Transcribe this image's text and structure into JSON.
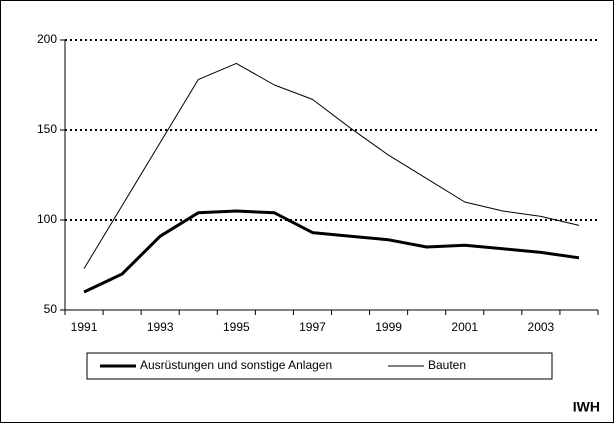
{
  "chart_data": {
    "type": "line",
    "categories": [
      "1991",
      null,
      "1993",
      null,
      "1995",
      null,
      "1997",
      null,
      "1999",
      null,
      "2001",
      null,
      "2003",
      null
    ],
    "series": [
      {
        "name": "Ausrüstungen und sonstige Anlagen",
        "color": "#000000",
        "width": 3,
        "values": [
          60,
          70,
          91,
          104,
          105,
          104,
          93,
          91,
          89,
          85,
          86,
          84,
          82,
          79
        ]
      },
      {
        "name": "Bauten",
        "color": "#000000",
        "width": 1,
        "values": [
          73,
          108,
          143,
          178,
          187,
          175,
          167,
          151,
          136,
          123,
          110,
          105,
          102,
          97
        ]
      }
    ],
    "ylim": [
      50,
      200
    ],
    "yticks": [
      50,
      100,
      150,
      200
    ],
    "grid": true,
    "source": "IWH"
  }
}
